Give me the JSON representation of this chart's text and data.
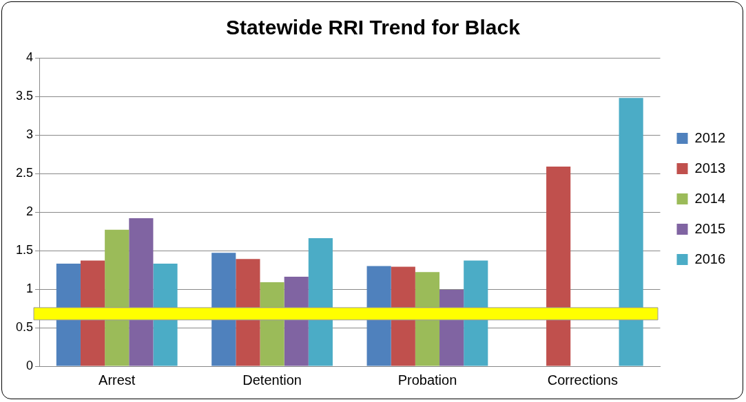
{
  "chart_data": {
    "type": "bar",
    "title": "Statewide RRI Trend for Black",
    "categories": [
      "Arrest",
      "Detention",
      "Probation",
      "Corrections"
    ],
    "series": [
      {
        "name": "2012",
        "color": "#4f81bd",
        "values": [
          1.33,
          1.47,
          1.3,
          null
        ]
      },
      {
        "name": "2013",
        "color": "#c0504d",
        "values": [
          1.37,
          1.39,
          1.29,
          2.59
        ]
      },
      {
        "name": "2014",
        "color": "#9bbb59",
        "values": [
          1.77,
          1.09,
          1.22,
          null
        ]
      },
      {
        "name": "2015",
        "color": "#8064a2",
        "values": [
          1.92,
          1.16,
          0.99,
          null
        ]
      },
      {
        "name": "2016",
        "color": "#4bacc6",
        "values": [
          1.33,
          1.66,
          1.37,
          3.48
        ]
      }
    ],
    "ylim": [
      0,
      4
    ],
    "yticks": [
      0,
      0.5,
      1,
      1.5,
      2,
      2.5,
      3,
      3.5,
      4
    ],
    "grid": "y",
    "legend": "right",
    "bands": [
      {
        "axis": "y",
        "from": 0.6,
        "to": 0.76,
        "color": "#ffff00"
      }
    ]
  }
}
